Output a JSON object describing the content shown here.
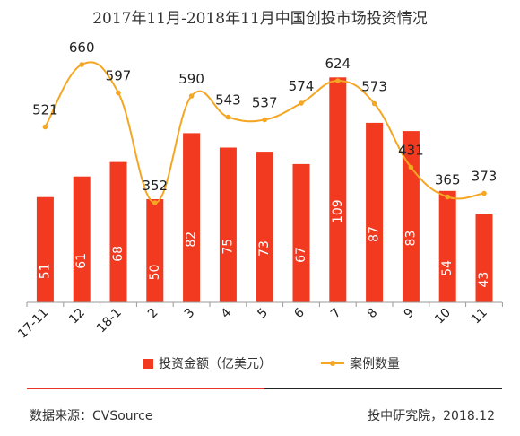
{
  "chart_data": {
    "type": "bar+line",
    "title": "2017年11月-2018年11月中国创投市场投资情况",
    "categories": [
      "17-11",
      "12",
      "18-1",
      "2",
      "3",
      "4",
      "5",
      "6",
      "7",
      "8",
      "9",
      "10",
      "11"
    ],
    "series": [
      {
        "name": "投资金额（亿美元）",
        "type": "bar",
        "color": "#f23a20",
        "values": [
          51,
          61,
          68,
          50,
          82,
          75,
          73,
          67,
          109,
          87,
          83,
          54,
          43
        ]
      },
      {
        "name": "案例数量",
        "type": "line",
        "color": "#f5a623",
        "values": [
          521,
          660,
          597,
          352,
          590,
          543,
          537,
          574,
          624,
          573,
          431,
          365,
          373
        ]
      }
    ],
    "grid": false,
    "legend_position": "bottom"
  },
  "legend": {
    "bar_label": "投资金额（亿美元）",
    "line_label": "案例数量"
  },
  "footer": {
    "source": "数据来源：CVSource",
    "credit": "投中研究院，2018.12"
  }
}
